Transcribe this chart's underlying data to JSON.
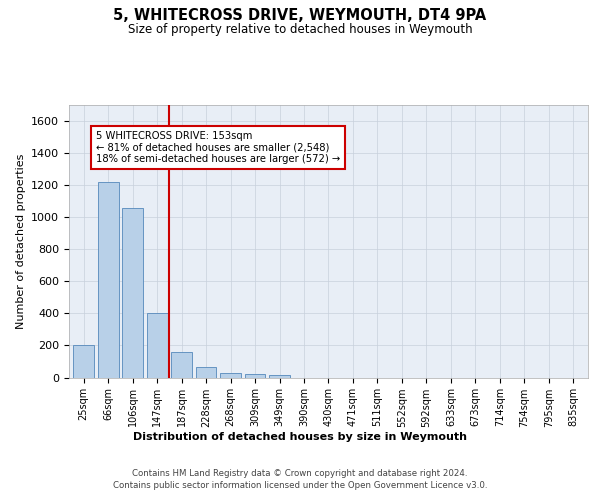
{
  "title": "5, WHITECROSS DRIVE, WEYMOUTH, DT4 9PA",
  "subtitle": "Size of property relative to detached houses in Weymouth",
  "xlabel": "Distribution of detached houses by size in Weymouth",
  "ylabel": "Number of detached properties",
  "categories": [
    "25sqm",
    "66sqm",
    "106sqm",
    "147sqm",
    "187sqm",
    "228sqm",
    "268sqm",
    "309sqm",
    "349sqm",
    "390sqm",
    "430sqm",
    "471sqm",
    "511sqm",
    "552sqm",
    "592sqm",
    "633sqm",
    "673sqm",
    "714sqm",
    "754sqm",
    "795sqm",
    "835sqm"
  ],
  "values": [
    200,
    1220,
    1060,
    405,
    160,
    65,
    30,
    20,
    15,
    0,
    0,
    0,
    0,
    0,
    0,
    0,
    0,
    0,
    0,
    0,
    0
  ],
  "bar_color": "#b8d0e8",
  "bar_edge_color": "#5588bb",
  "vline_color": "#cc0000",
  "annotation_text": "5 WHITECROSS DRIVE: 153sqm\n← 81% of detached houses are smaller (2,548)\n18% of semi-detached houses are larger (572) →",
  "annotation_box_color": "#cc0000",
  "ylim": [
    0,
    1700
  ],
  "yticks": [
    0,
    200,
    400,
    600,
    800,
    1000,
    1200,
    1400,
    1600
  ],
  "grid_color": "#c8d0dc",
  "bg_color": "#e8eef6",
  "footer_text": "Contains HM Land Registry data © Crown copyright and database right 2024.\nContains public sector information licensed under the Open Government Licence v3.0."
}
